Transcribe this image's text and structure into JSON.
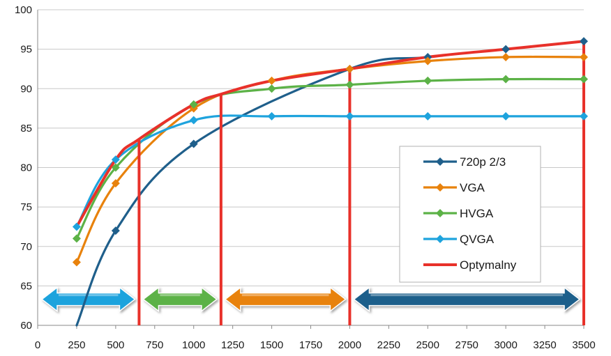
{
  "chart_data": {
    "type": "line",
    "x_ticks": [
      0,
      250,
      500,
      750,
      1000,
      1250,
      1500,
      1750,
      2000,
      2250,
      2500,
      2750,
      3000,
      3250,
      3500
    ],
    "y_ticks": [
      60,
      65,
      70,
      75,
      80,
      85,
      90,
      95,
      100
    ],
    "xlim": [
      0,
      3500
    ],
    "ylim": [
      60,
      100
    ],
    "grid": "horizontal",
    "legend_position": "right",
    "series": [
      {
        "name": "720p 2/3",
        "color": "#1f5f8b",
        "marker": "diamond",
        "points": [
          [
            250,
            60
          ],
          [
            500,
            72
          ],
          [
            1000,
            83
          ],
          [
            2000,
            92.5
          ],
          [
            2500,
            94
          ],
          [
            3000,
            95
          ],
          [
            3500,
            96
          ]
        ]
      },
      {
        "name": "VGA",
        "color": "#e8820c",
        "marker": "diamond",
        "points": [
          [
            250,
            68
          ],
          [
            500,
            78
          ],
          [
            1000,
            87.5
          ],
          [
            1500,
            91
          ],
          [
            2000,
            92.5
          ],
          [
            2500,
            93.5
          ],
          [
            3000,
            94
          ],
          [
            3500,
            94
          ]
        ]
      },
      {
        "name": "HVGA",
        "color": "#5cb247",
        "marker": "diamond",
        "points": [
          [
            250,
            71
          ],
          [
            500,
            80
          ],
          [
            1000,
            88
          ],
          [
            1500,
            90
          ],
          [
            2000,
            90.5
          ],
          [
            2500,
            91
          ],
          [
            3000,
            91.2
          ],
          [
            3500,
            91.2
          ]
        ]
      },
      {
        "name": "QVGA",
        "color": "#1ea3dd",
        "marker": "diamond",
        "points": [
          [
            250,
            72.5
          ],
          [
            500,
            81
          ],
          [
            1000,
            86
          ],
          [
            1500,
            86.5
          ],
          [
            2000,
            86.5
          ],
          [
            2500,
            86.5
          ],
          [
            3000,
            86.5
          ],
          [
            3500,
            86.5
          ]
        ]
      },
      {
        "name": "Optymalny",
        "color": "#e8312a",
        "marker": "none",
        "points": [
          [
            250,
            72.5
          ],
          [
            500,
            81
          ],
          [
            650,
            83.6
          ],
          [
            1000,
            88
          ],
          [
            1175,
            89.3
          ],
          [
            1500,
            91
          ],
          [
            2000,
            92.5
          ],
          [
            2500,
            94
          ],
          [
            3000,
            95
          ],
          [
            3500,
            96
          ]
        ]
      }
    ],
    "vertical_lines": {
      "color": "#e8312a",
      "x": [
        650,
        1175,
        2000,
        3500
      ]
    },
    "range_arrows": [
      {
        "x0": 0,
        "x1": 650,
        "color": "#1ea3dd"
      },
      {
        "x0": 650,
        "x1": 1175,
        "color": "#5cb247"
      },
      {
        "x0": 1175,
        "x1": 2000,
        "color": "#e8820c"
      },
      {
        "x0": 2000,
        "x1": 3500,
        "color": "#1f5f8b"
      }
    ]
  }
}
